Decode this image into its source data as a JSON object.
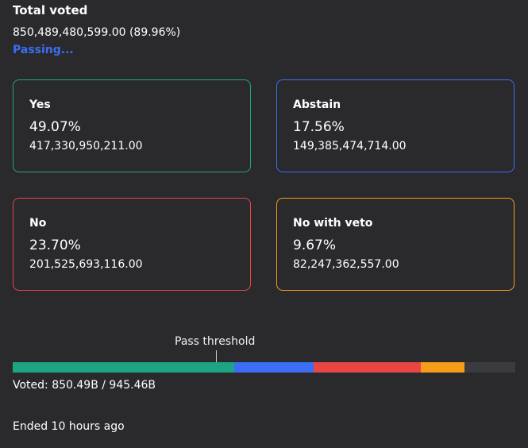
{
  "summary": {
    "title": "Total voted",
    "value": "850,489,480,599.00 (89.96%)",
    "status": "Passing..."
  },
  "options": {
    "yes": {
      "label": "Yes",
      "percent": "49.07%",
      "amount": "417,330,950,211.00",
      "color": "#1da583"
    },
    "abstain": {
      "label": "Abstain",
      "percent": "17.56%",
      "amount": "149,385,474,714.00",
      "color": "#3b6ef5"
    },
    "no": {
      "label": "No",
      "percent": "23.70%",
      "amount": "201,525,693,116.00",
      "color": "#e84545"
    },
    "veto": {
      "label": "No with veto",
      "percent": "9.67%",
      "amount": "82,247,362,557.00",
      "color": "#f59d19"
    }
  },
  "progress": {
    "threshold_label": "Pass threshold",
    "segments": [
      {
        "key": "yes",
        "fraction": 0.4414,
        "color": "#1da583"
      },
      {
        "key": "abstain",
        "fraction": 0.158,
        "color": "#3b6ef5"
      },
      {
        "key": "no",
        "fraction": 0.2132,
        "color": "#e84545"
      },
      {
        "key": "veto",
        "fraction": 0.087,
        "color": "#f59d19"
      }
    ],
    "voted_text": "Voted: 850.49B / 945.46B"
  },
  "footer": {
    "ended_text": "Ended 10 hours ago"
  }
}
